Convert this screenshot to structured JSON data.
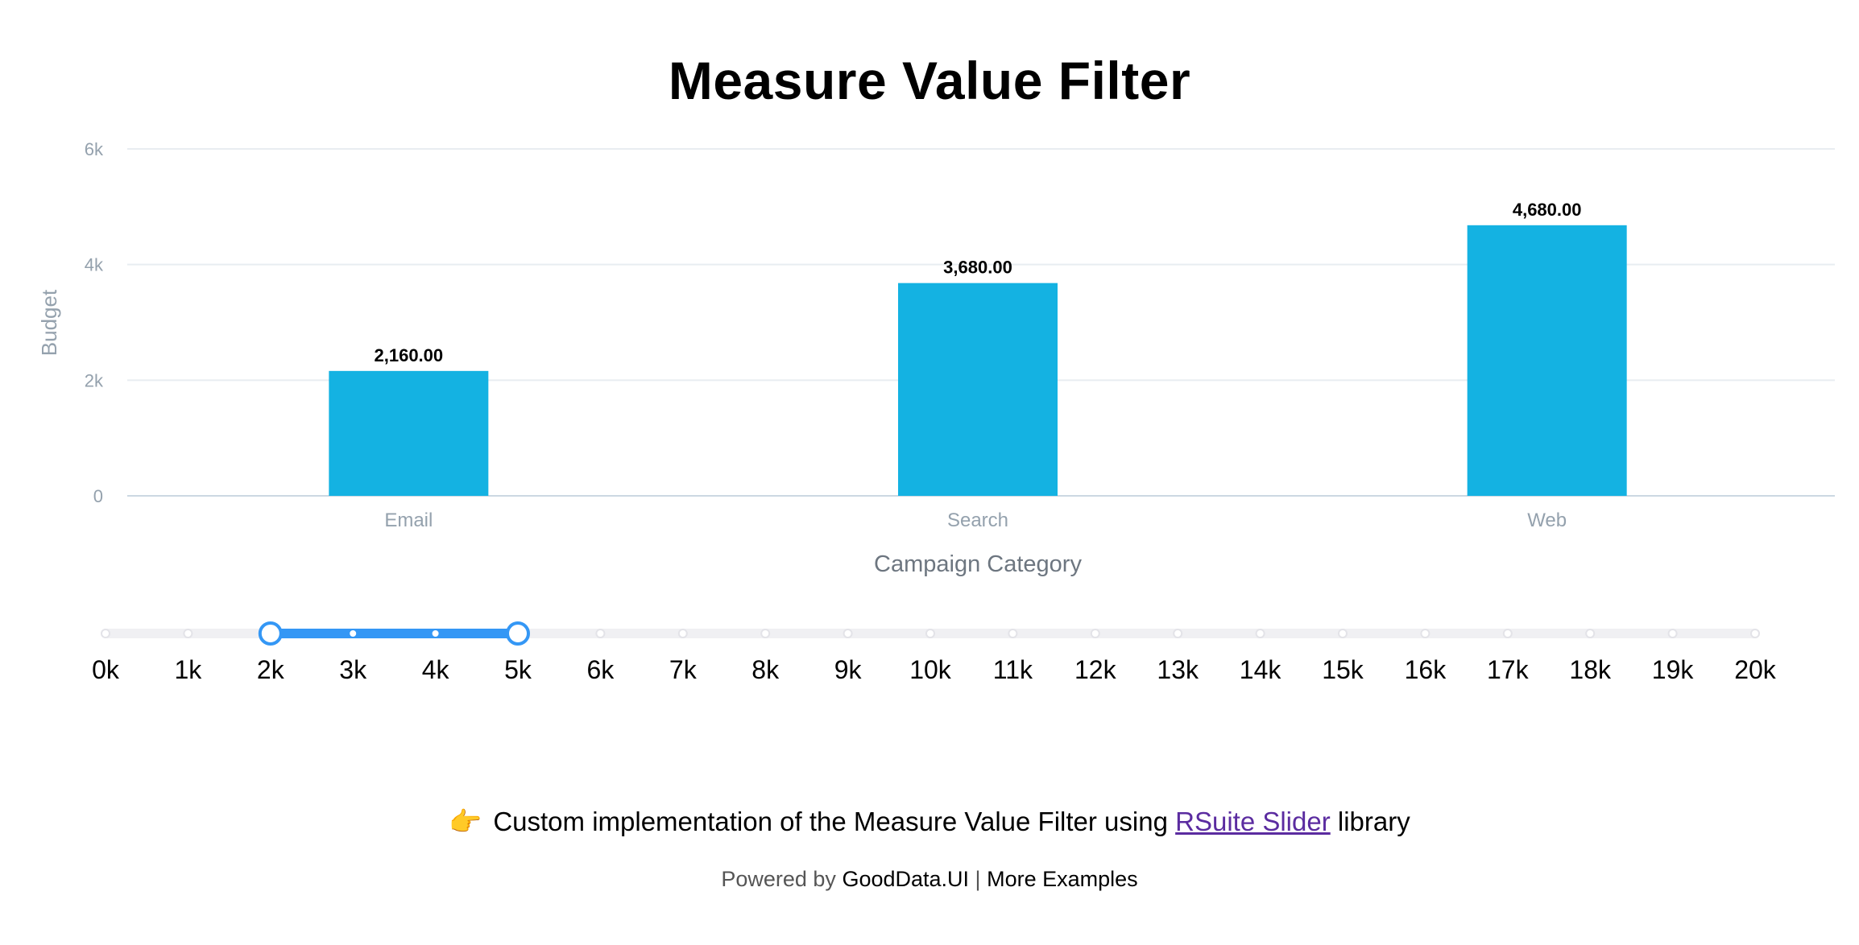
{
  "page": {
    "title": "Measure Value Filter"
  },
  "chart_data": {
    "type": "bar",
    "categories": [
      "Email",
      "Search",
      "Web"
    ],
    "series": [
      {
        "values": [
          2160,
          3680,
          4680
        ]
      }
    ],
    "data_labels": [
      "2,160.00",
      "3,680.00",
      "4,680.00"
    ],
    "xlabel": "Campaign Category",
    "ylabel": "Budget",
    "ylim": [
      0,
      6000
    ],
    "yticks": [
      0,
      2000,
      4000,
      6000
    ],
    "ytick_labels": [
      "0",
      "2k",
      "4k",
      "6k"
    ],
    "grid": true,
    "legend": "none",
    "bar_color": "#14b2e2",
    "gridline_color": "#e8edf1",
    "axis_color": "#ccd8e2"
  },
  "slider": {
    "min": 0,
    "max": 20000,
    "step": 1000,
    "range_start": 2000,
    "range_end": 5000,
    "tick_labels": [
      "0k",
      "1k",
      "2k",
      "3k",
      "4k",
      "5k",
      "6k",
      "7k",
      "8k",
      "9k",
      "10k",
      "11k",
      "12k",
      "13k",
      "14k",
      "15k",
      "16k",
      "17k",
      "18k",
      "19k",
      "20k"
    ],
    "track_color": "#f0f0f3",
    "active_color": "#3497f5"
  },
  "note": {
    "emoji": "👉",
    "text_before": "Custom implementation of the Measure Value Filter using ",
    "link_label": "RSuite Slider",
    "text_after": " library"
  },
  "footer": {
    "powered_by": "Powered by",
    "brand": "GoodData.UI",
    "separator": "|",
    "more_examples": "More Examples"
  }
}
